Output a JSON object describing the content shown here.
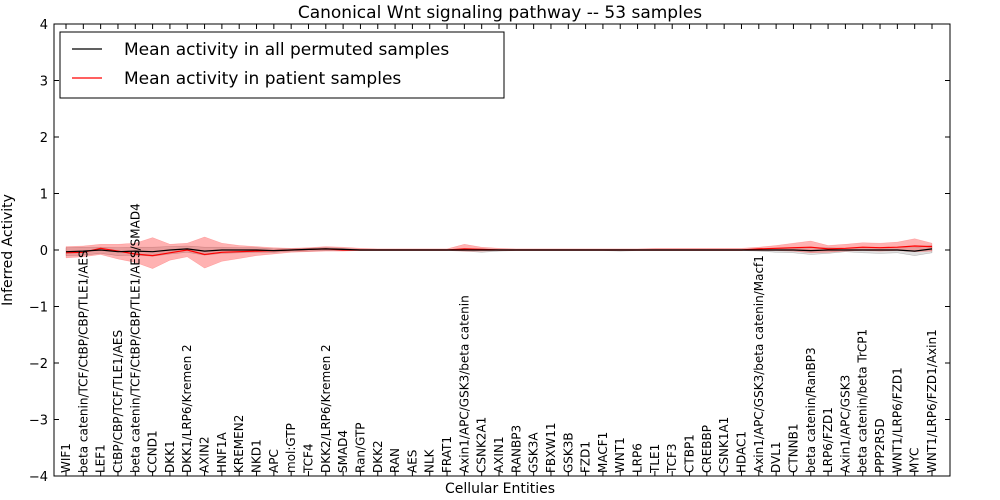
{
  "chart_data": {
    "type": "line",
    "title": "Canonical Wnt signaling pathway -- 53 samples",
    "xlabel": "Cellular Entities",
    "ylabel": "Inferred Activity",
    "ylim": [
      -4,
      4
    ],
    "yticks": [
      4,
      3,
      2,
      1,
      0,
      -1,
      -2,
      -3,
      -4
    ],
    "ytick_labels": [
      "4",
      "3",
      "2",
      "1",
      "0",
      "−1",
      "−2",
      "−3",
      "−4"
    ],
    "categories": [
      "WIF1",
      "beta catenin/TCF/CtBP/CBP/TLE1/AES",
      "LEF1",
      "CtBP/CBP/TCF/TLE1/AES",
      "beta catenin/TCF/CtBP/CBP/TLE1/AES/SMAD4",
      "CCND1",
      "DKK1",
      "DKK1/LRP6/Kremen 2",
      "AXIN2",
      "HNF1A",
      "KREMEN2",
      "NKD1",
      "APC",
      "mol:GTP",
      "TCF4",
      "DKK2/LRP6/Kremen 2",
      "SMAD4",
      "Ran/GTP",
      "DKK2",
      "RAN",
      "AES",
      "NLK",
      "FRAT1",
      "Axin1/APC/GSK3/beta catenin",
      "CSNK2A1",
      "AXIN1",
      "RANBP3",
      "GSK3A",
      "FBXW11",
      "GSK3B",
      "FZD1",
      "MACF1",
      "WNT1",
      "LRP6",
      "TLE1",
      "TCF3",
      "CTBP1",
      "CREBBP",
      "CSNK1A1",
      "HDAC1",
      "Axin1/APC/GSK3/beta catenin/Macf1",
      "DVL1",
      "CTNNB1",
      "beta catenin/RanBP3",
      "LRP6/FZD1",
      "Axin1/APC/GSK3",
      "beta catenin/beta TrCP1",
      "PPP2R5D",
      "WNT1/LRP6/FZD1",
      "MYC",
      "WNT1/LRP6/FZD1/Axin1"
    ],
    "series": [
      {
        "name": "Mean activity in all permuted samples",
        "color": "#000000",
        "values": [
          -0.03,
          -0.02,
          0.0,
          -0.03,
          -0.02,
          -0.03,
          0.0,
          0.02,
          -0.02,
          0.0,
          0.0,
          0.0,
          -0.01,
          0.0,
          0.01,
          0.02,
          0.01,
          0.0,
          0.0,
          0.0,
          0.0,
          0.0,
          0.0,
          0.0,
          0.0,
          0.0,
          0.0,
          0.0,
          0.0,
          0.0,
          0.0,
          0.0,
          0.0,
          0.0,
          0.0,
          0.0,
          0.0,
          0.0,
          0.0,
          0.0,
          0.0,
          0.0,
          0.0,
          -0.01,
          0.0,
          0.0,
          0.0,
          0.0,
          0.0,
          -0.02,
          0.02
        ],
        "band_low": [
          -0.1,
          -0.09,
          -0.06,
          -0.1,
          -0.09,
          -0.11,
          -0.07,
          -0.04,
          -0.09,
          -0.06,
          -0.05,
          -0.04,
          -0.04,
          -0.02,
          -0.02,
          -0.01,
          -0.01,
          -0.01,
          -0.01,
          -0.01,
          -0.01,
          -0.01,
          -0.01,
          -0.02,
          -0.04,
          -0.02,
          -0.01,
          -0.01,
          -0.01,
          -0.01,
          -0.01,
          -0.01,
          -0.02,
          -0.01,
          -0.01,
          -0.01,
          -0.01,
          -0.01,
          -0.01,
          -0.01,
          -0.02,
          -0.04,
          -0.05,
          -0.08,
          -0.06,
          -0.03,
          -0.05,
          -0.06,
          -0.05,
          -0.1,
          -0.05
        ],
        "band_high": [
          0.04,
          0.05,
          0.05,
          0.04,
          0.05,
          0.05,
          0.06,
          0.07,
          0.05,
          0.05,
          0.04,
          0.04,
          0.02,
          0.02,
          0.03,
          0.04,
          0.03,
          0.01,
          0.01,
          0.01,
          0.01,
          0.01,
          0.01,
          0.01,
          0.02,
          0.01,
          0.01,
          0.01,
          0.01,
          0.01,
          0.01,
          0.01,
          0.01,
          0.01,
          0.01,
          0.01,
          0.01,
          0.01,
          0.01,
          0.01,
          0.02,
          0.02,
          0.03,
          0.04,
          0.04,
          0.03,
          0.04,
          0.04,
          0.05,
          0.04,
          0.08
        ]
      },
      {
        "name": "Mean activity in patient samples",
        "color": "#ff0000",
        "values": [
          -0.05,
          -0.04,
          0.03,
          -0.02,
          -0.07,
          -0.1,
          -0.05,
          0.0,
          -0.08,
          -0.04,
          -0.03,
          -0.02,
          -0.01,
          0.0,
          0.01,
          0.02,
          0.0,
          0.0,
          0.0,
          0.0,
          0.0,
          0.0,
          0.0,
          0.02,
          0.01,
          0.0,
          0.0,
          0.0,
          0.0,
          0.0,
          0.0,
          0.0,
          0.0,
          0.0,
          0.0,
          0.0,
          0.0,
          0.0,
          0.0,
          0.0,
          0.02,
          0.03,
          0.04,
          0.05,
          0.02,
          0.03,
          0.05,
          0.04,
          0.05,
          0.07,
          0.06
        ],
        "band_low": [
          -0.14,
          -0.12,
          -0.08,
          -0.16,
          -0.22,
          -0.33,
          -0.18,
          -0.12,
          -0.32,
          -0.2,
          -0.15,
          -0.1,
          -0.07,
          -0.04,
          -0.03,
          -0.02,
          -0.02,
          -0.01,
          -0.01,
          -0.01,
          -0.01,
          -0.01,
          -0.01,
          -0.02,
          -0.02,
          -0.01,
          -0.01,
          -0.01,
          -0.01,
          -0.01,
          -0.01,
          -0.01,
          -0.01,
          -0.01,
          -0.01,
          -0.01,
          -0.01,
          -0.01,
          -0.01,
          -0.01,
          -0.01,
          -0.01,
          -0.02,
          -0.05,
          -0.04,
          -0.02,
          -0.01,
          -0.02,
          -0.01,
          -0.03,
          -0.02
        ],
        "band_high": [
          0.06,
          0.07,
          0.1,
          0.1,
          0.12,
          0.22,
          0.1,
          0.12,
          0.23,
          0.12,
          0.08,
          0.06,
          0.04,
          0.03,
          0.04,
          0.06,
          0.05,
          0.03,
          0.02,
          0.02,
          0.02,
          0.02,
          0.02,
          0.1,
          0.05,
          0.03,
          0.02,
          0.02,
          0.02,
          0.02,
          0.02,
          0.02,
          0.02,
          0.02,
          0.03,
          0.03,
          0.03,
          0.03,
          0.03,
          0.03,
          0.05,
          0.08,
          0.12,
          0.16,
          0.08,
          0.1,
          0.13,
          0.12,
          0.14,
          0.2,
          0.12
        ]
      }
    ],
    "legend_position": "top-left",
    "grid": false
  }
}
